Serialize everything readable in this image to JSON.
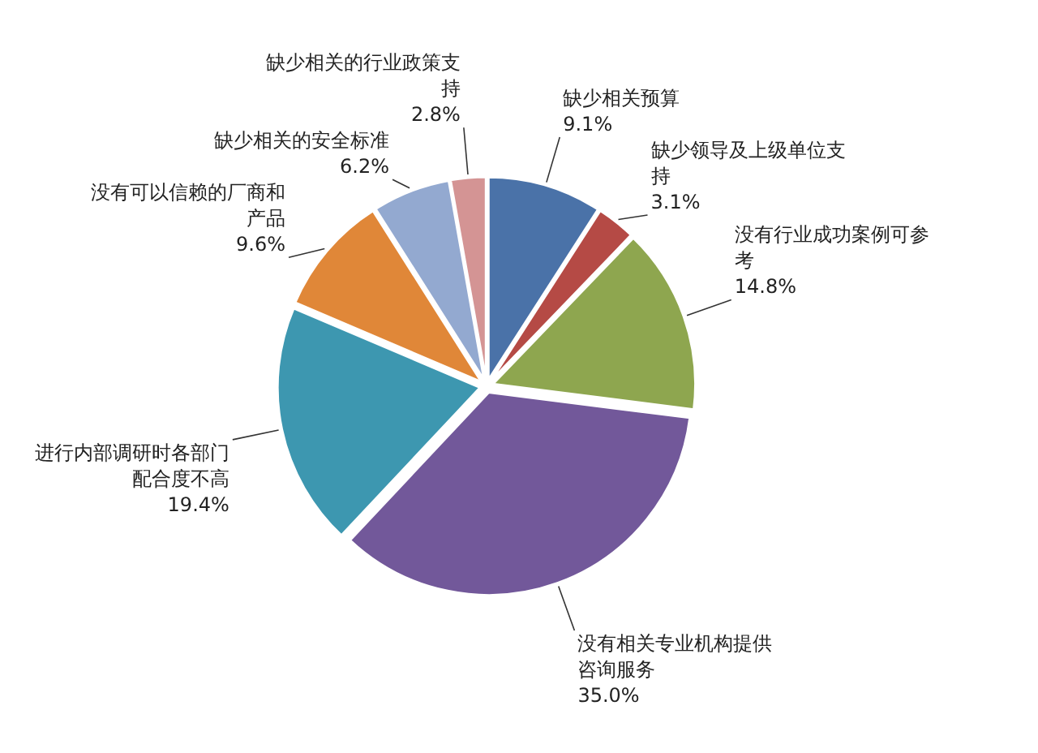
{
  "chart_data": {
    "type": "pie",
    "categories": [
      "缺少相关预算",
      "缺少领导及上级单位支持",
      "没有行业成功案例可参考",
      "没有相关专业机构提供咨询服务",
      "进行内部调研时各部门配合度不高",
      "没有可以信赖的厂商和产品",
      "缺少相关的安全标准",
      "缺少相关的行业政策支持"
    ],
    "values": [
      9.1,
      3.1,
      14.8,
      35.0,
      19.4,
      9.6,
      6.2,
      2.8
    ],
    "colors": [
      "#4a72a8",
      "#b54a45",
      "#8ea64f",
      "#72589a",
      "#3d97b0",
      "#e08738",
      "#93a9d0",
      "#d49494"
    ],
    "value_labels": [
      "9.1%",
      "3.1%",
      "14.8%",
      "35.0%",
      "19.4%",
      "9.6%",
      "6.2%",
      "2.8%"
    ]
  }
}
